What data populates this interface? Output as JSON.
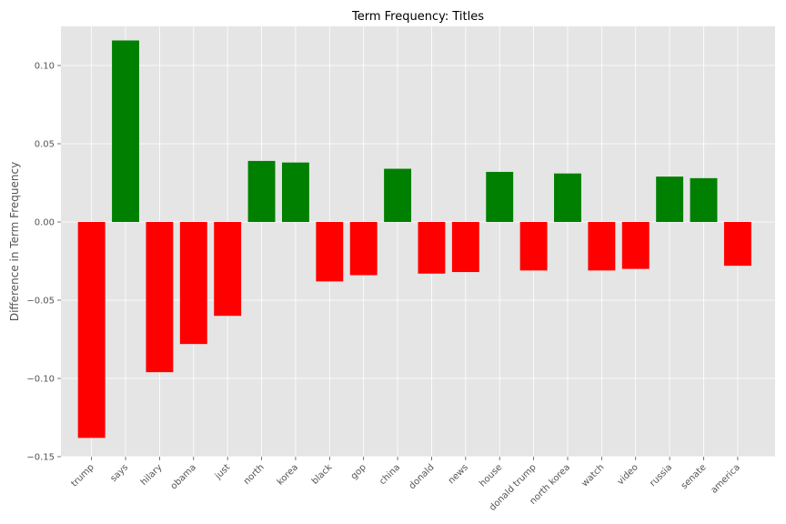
{
  "chart_data": {
    "type": "bar",
    "title": "Term Frequency: Titles",
    "xlabel": "",
    "ylabel": "Difference in Term Frequency",
    "categories": [
      "trump",
      "says",
      "hilary",
      "obama",
      "just",
      "north",
      "korea",
      "black",
      "gop",
      "china",
      "donald",
      "news",
      "house",
      "donald trump",
      "north korea",
      "watch",
      "video",
      "russia",
      "senate",
      "america"
    ],
    "values": [
      -0.138,
      0.116,
      -0.096,
      -0.078,
      -0.06,
      0.039,
      0.038,
      -0.038,
      -0.034,
      0.034,
      -0.033,
      -0.032,
      0.032,
      -0.031,
      0.031,
      -0.031,
      -0.03,
      0.029,
      0.028,
      -0.028
    ],
    "ylim": [
      -0.15,
      0.125
    ],
    "yticks": [
      -0.15,
      -0.1,
      -0.05,
      0.0,
      0.05,
      0.1
    ],
    "ytick_labels": [
      "−0.15",
      "−0.10",
      "−0.05",
      "0.00",
      "0.05",
      "0.10"
    ],
    "grid": true,
    "colors": {
      "positive": "#008000",
      "negative": "#ff0000",
      "background": "#e5e5e5",
      "grid": "#ffffff"
    }
  }
}
